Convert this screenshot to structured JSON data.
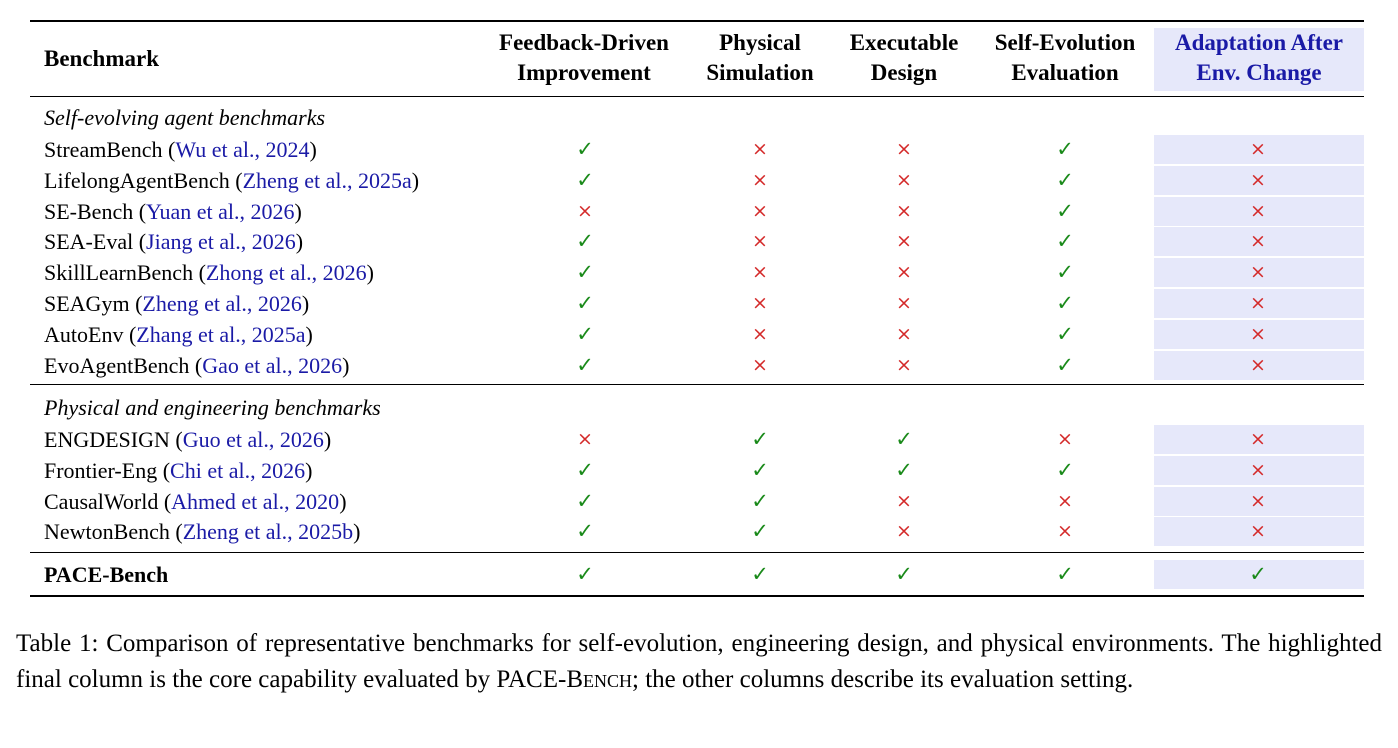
{
  "table": {
    "headers": {
      "benchmark": "Benchmark",
      "feedback_line1": "Feedback-Driven",
      "feedback_line2": "Improvement",
      "physical_line1": "Physical",
      "physical_line2": "Simulation",
      "executable_line1": "Executable",
      "executable_line2": "Design",
      "selfevo_line1": "Self-Evolution",
      "selfevo_line2": "Evaluation",
      "adapt_line1": "Adaptation After",
      "adapt_line2": "Env. Change"
    },
    "sections": [
      {
        "title": "Self-evolving agent benchmarks",
        "rows": [
          {
            "name": "StreamBench",
            "open": " (",
            "cite": "Wu et al., 2024",
            "close": ")",
            "marks": [
              "✓",
              "×",
              "×",
              "✓",
              "×"
            ]
          },
          {
            "name": "LifelongAgentBench",
            "open": " (",
            "cite": "Zheng et al., 2025a",
            "close": ")",
            "marks": [
              "✓",
              "×",
              "×",
              "✓",
              "×"
            ]
          },
          {
            "name": "SE-Bench",
            "open": " (",
            "cite": "Yuan et al., 2026",
            "close": ")",
            "marks": [
              "×",
              "×",
              "×",
              "✓",
              "×"
            ]
          },
          {
            "name": "SEA-Eval",
            "open": " (",
            "cite": "Jiang et al., 2026",
            "close": ")",
            "marks": [
              "✓",
              "×",
              "×",
              "✓",
              "×"
            ]
          },
          {
            "name": "SkillLearnBench",
            "open": " (",
            "cite": "Zhong et al., 2026",
            "close": ")",
            "marks": [
              "✓",
              "×",
              "×",
              "✓",
              "×"
            ]
          },
          {
            "name": "SEAGym",
            "open": " (",
            "cite": "Zheng et al., 2026",
            "close": ")",
            "marks": [
              "✓",
              "×",
              "×",
              "✓",
              "×"
            ]
          },
          {
            "name": "AutoEnv",
            "open": " (",
            "cite": "Zhang et al., 2025a",
            "close": ")",
            "marks": [
              "✓",
              "×",
              "×",
              "✓",
              "×"
            ]
          },
          {
            "name": "EvoAgentBench",
            "open": " (",
            "cite": "Gao et al., 2026",
            "close": ")",
            "marks": [
              "✓",
              "×",
              "×",
              "✓",
              "×"
            ]
          }
        ]
      },
      {
        "title": "Physical and engineering benchmarks",
        "rows": [
          {
            "name": "ENGDESIGN",
            "open": " (",
            "cite": "Guo et al., 2026",
            "close": ")",
            "marks": [
              "×",
              "✓",
              "✓",
              "×",
              "×"
            ]
          },
          {
            "name": "Frontier-Eng",
            "open": " (",
            "cite": "Chi et al., 2026",
            "close": ")",
            "marks": [
              "✓",
              "✓",
              "✓",
              "✓",
              "×"
            ]
          },
          {
            "name": "CausalWorld",
            "open": " (",
            "cite": "Ahmed et al., 2020",
            "close": ")",
            "marks": [
              "✓",
              "✓",
              "×",
              "×",
              "×"
            ]
          },
          {
            "name": "NewtonBench",
            "open": " (",
            "cite": "Zheng et al., 2025b",
            "close": ")",
            "marks": [
              "✓",
              "✓",
              "×",
              "×",
              "×"
            ]
          }
        ]
      }
    ],
    "final_row": {
      "name": "PACE-Bench",
      "marks": [
        "✓",
        "✓",
        "✓",
        "✓",
        "✓"
      ]
    }
  },
  "caption": {
    "part1": "Table 1: Comparison of representative benchmarks for self-evolution, engineering design, and physical environments. The highlighted final column is the core capability evaluated by ",
    "pace": "PACE-B",
    "ench": "ench",
    "part2": "; the other columns describe its evaluation setting."
  },
  "colors": {
    "check": "#1a8a1a",
    "cross": "#d42a2a",
    "citation": "#1a1aa6",
    "highlight": "#e6e8fa"
  }
}
